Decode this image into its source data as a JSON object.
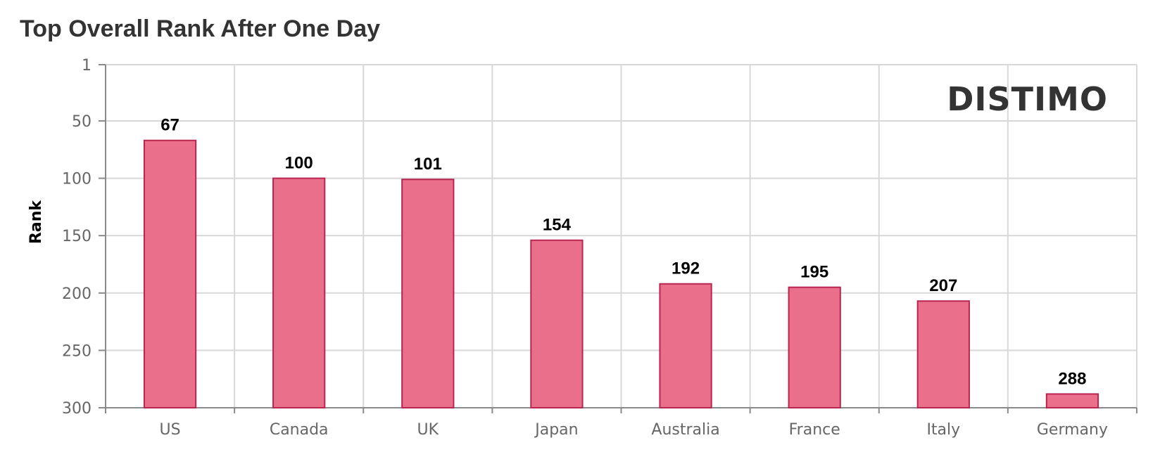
{
  "chart_data": {
    "type": "bar",
    "title": "Top Overall Rank After One Day",
    "ylabel": "Rank",
    "xlabel": "",
    "categories": [
      "US",
      "Canada",
      "UK",
      "Japan",
      "Australia",
      "France",
      "Italy",
      "Germany"
    ],
    "values": [
      67,
      100,
      101,
      154,
      192,
      195,
      207,
      288
    ],
    "ylim": [
      1,
      300
    ],
    "y_reversed": true,
    "yticks": [
      "1",
      "50",
      "100",
      "150",
      "200",
      "250",
      "300"
    ],
    "ytick_values": [
      1,
      50,
      100,
      150,
      200,
      250,
      300
    ],
    "grid": true,
    "data_labels": true,
    "bar_color": "#ea6f8b",
    "bar_border_color": "#b8254f",
    "watermark": "DISTIMO"
  }
}
